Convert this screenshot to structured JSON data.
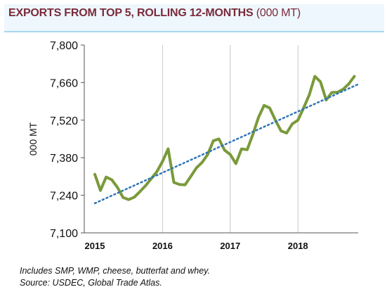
{
  "header": {
    "title_bold": "EXPORTS FROM TOP 5, ROLLING 12-MONTHS",
    "title_unit": "(000 MT)"
  },
  "footnotes": {
    "line1": "Includes SMP, WMP, cheese, butterfat and whey.",
    "line2": "Source: USDEC, Global Trade Atlas."
  },
  "colors": {
    "series": "#7a9a3a",
    "trend": "#2e75b6",
    "title": "#7b2a3a",
    "header_bg": "#eef7fd",
    "header_border": "#a9d6ee"
  },
  "chart_data": {
    "type": "line",
    "title": "EXPORTS FROM TOP 5, ROLLING 12-MONTHS (000 MT)",
    "xlabel": "",
    "ylabel": "000 MT",
    "ylim": [
      7100,
      7800
    ],
    "yticks": [
      "7,100",
      "7,240",
      "7,380",
      "7,520",
      "7,660",
      "7,800"
    ],
    "ytick_values": [
      7100,
      7240,
      7380,
      7520,
      7660,
      7800
    ],
    "xticks": [
      "2015",
      "2016",
      "2017",
      "2018"
    ],
    "xtick_values": [
      2015,
      2016,
      2017,
      2018
    ],
    "xlim": [
      2015,
      2018.9
    ],
    "grid": "vertical",
    "series": [
      {
        "style": "solid",
        "x": [
          2015.0,
          2015.083,
          2015.167,
          2015.25,
          2015.333,
          2015.417,
          2015.5,
          2015.583,
          2015.667,
          2015.75,
          2015.833,
          2015.917,
          2016.0,
          2016.083,
          2016.167,
          2016.25,
          2016.333,
          2016.417,
          2016.5,
          2016.583,
          2016.667,
          2016.75,
          2016.833,
          2016.917,
          2017.0,
          2017.083,
          2017.167,
          2017.25,
          2017.333,
          2017.417,
          2017.5,
          2017.583,
          2017.667,
          2017.75,
          2017.833,
          2017.917,
          2018.0,
          2018.083,
          2018.167,
          2018.25,
          2018.333,
          2018.417,
          2018.5,
          2018.583,
          2018.667,
          2018.75,
          2018.833
        ],
        "values": [
          7318,
          7258,
          7308,
          7298,
          7270,
          7232,
          7224,
          7233,
          7254,
          7276,
          7302,
          7328,
          7366,
          7413,
          7288,
          7280,
          7279,
          7310,
          7342,
          7362,
          7392,
          7443,
          7450,
          7408,
          7392,
          7358,
          7413,
          7410,
          7466,
          7530,
          7575,
          7565,
          7520,
          7480,
          7472,
          7506,
          7520,
          7565,
          7614,
          7683,
          7663,
          7595,
          7623,
          7624,
          7635,
          7655,
          7683
        ]
      },
      {
        "style": "dotted",
        "x": [
          2015.0,
          2018.9
        ],
        "values": [
          7210,
          7655
        ]
      }
    ]
  }
}
